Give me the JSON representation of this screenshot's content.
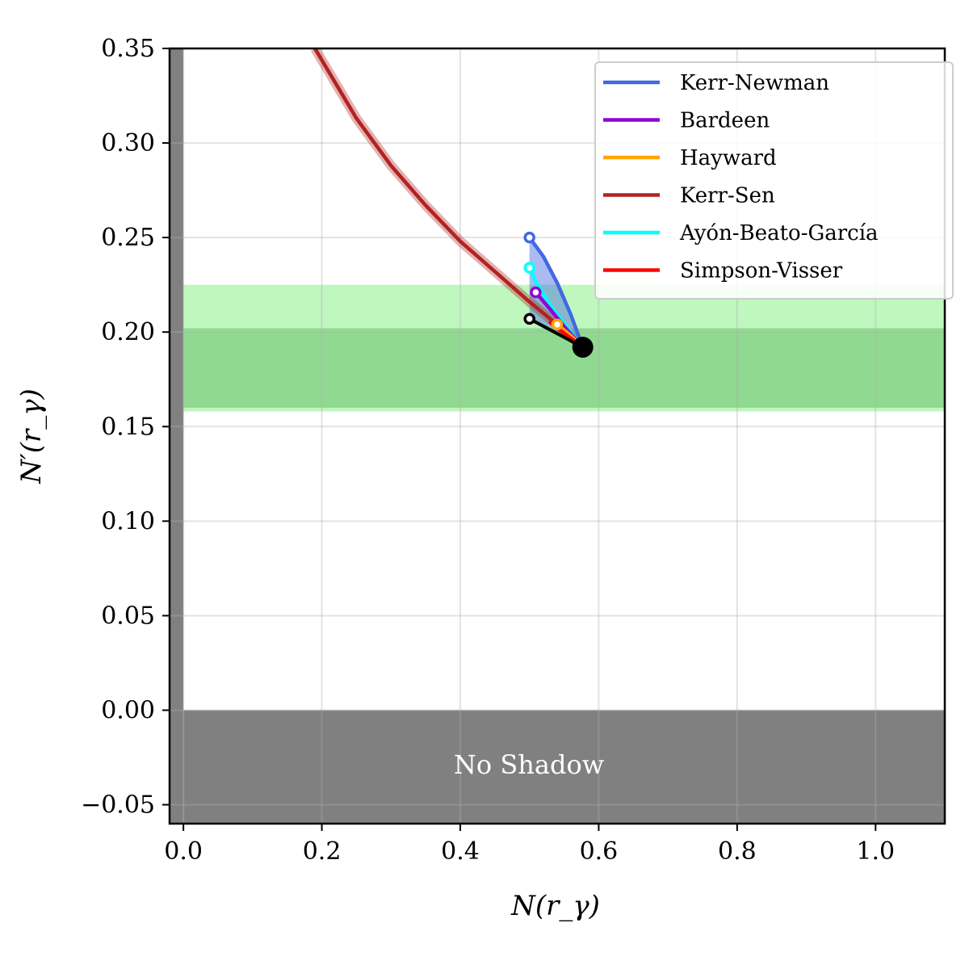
{
  "chart_data": {
    "type": "line",
    "xlabel": "N(r_γ)",
    "ylabel": "N′(r_γ)",
    "xlim": [
      -0.02,
      1.1
    ],
    "ylim": [
      -0.06,
      0.35
    ],
    "xticks": [
      0.0,
      0.2,
      0.4,
      0.6,
      0.8,
      1.0
    ],
    "xtick_labels": [
      "0.0",
      "0.2",
      "0.4",
      "0.6",
      "0.8",
      "1.0"
    ],
    "yticks": [
      -0.05,
      0.0,
      0.05,
      0.1,
      0.15,
      0.2,
      0.25,
      0.3,
      0.35
    ],
    "ytick_labels": [
      "−0.05",
      "0.00",
      "0.05",
      "0.10",
      "0.15",
      "0.20",
      "0.25",
      "0.30",
      "0.35"
    ],
    "grid": true,
    "legend_position": "top-right",
    "shaded_regions": {
      "no_shadow": {
        "y_range": [
          -0.06,
          0.0
        ],
        "x_range": [
          0.0,
          1.1
        ],
        "color": "#808080",
        "label": "No Shadow"
      },
      "left_band": {
        "x_range": [
          -0.02,
          0.0
        ],
        "color": "#808080"
      },
      "band_outer": {
        "y_range": [
          0.158,
          0.225
        ],
        "color": "#bff7bf"
      },
      "band_inner": {
        "y_range": [
          0.16,
          0.202
        ],
        "color": "#90d990"
      }
    },
    "endpoint": {
      "x": 0.577,
      "y": 0.192,
      "color": "#000000"
    },
    "series": [
      {
        "name": "Kerr-Newman",
        "color": "#4169e1",
        "x": [
          0.5,
          0.52,
          0.54,
          0.56,
          0.577
        ],
        "y": [
          0.25,
          0.24,
          0.226,
          0.209,
          0.192
        ],
        "lower_x": [
          0.5,
          0.577
        ],
        "lower_y": [
          0.207,
          0.192
        ],
        "open_marker": [
          0.5,
          0.25
        ]
      },
      {
        "name": "Bardeen",
        "color": "#9400d3",
        "x": [
          0.509,
          0.53,
          0.55,
          0.577
        ],
        "y": [
          0.221,
          0.212,
          0.203,
          0.192
        ],
        "open_marker": [
          0.509,
          0.221
        ]
      },
      {
        "name": "Hayward",
        "color": "#ffa500",
        "x": [
          0.54,
          0.56,
          0.577
        ],
        "y": [
          0.204,
          0.198,
          0.192
        ],
        "open_marker": [
          0.54,
          0.204
        ]
      },
      {
        "name": "Kerr-Sen",
        "color": "#b22222",
        "x": [
          0.19,
          0.25,
          0.3,
          0.35,
          0.4,
          0.45,
          0.5,
          0.54,
          0.577
        ],
        "y": [
          0.35,
          0.313,
          0.288,
          0.267,
          0.248,
          0.232,
          0.216,
          0.204,
          0.192
        ]
      },
      {
        "name": "Ayón-Beato-García",
        "color": "#00ffff",
        "x": [
          0.5,
          0.51,
          0.53,
          0.555,
          0.577
        ],
        "y": [
          0.234,
          0.226,
          0.214,
          0.202,
          0.192
        ],
        "open_marker": [
          0.5,
          0.234
        ]
      },
      {
        "name": "Simpson-Visser",
        "color": "#ff0000",
        "x": [
          0.53,
          0.555,
          0.577
        ],
        "y": [
          0.205,
          0.198,
          0.192
        ]
      },
      {
        "name": "",
        "color": "#000000",
        "x": [
          0.5,
          0.577
        ],
        "y": [
          0.207,
          0.192
        ],
        "open_marker": [
          0.5,
          0.207
        ]
      }
    ]
  }
}
